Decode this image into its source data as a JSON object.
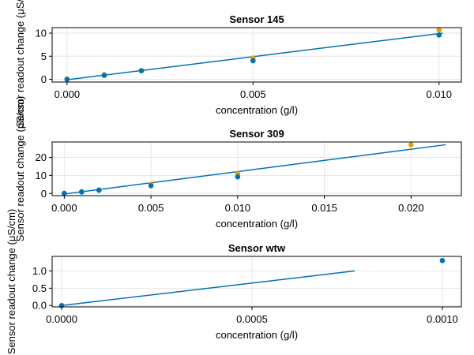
{
  "colors": {
    "fit": "#0072b2",
    "blue": "#0072b2",
    "orange": "#e69f00",
    "grid": "#e6e6e6",
    "frame": "#000000"
  },
  "chart_data": [
    {
      "type": "scatter",
      "title": "Sensor 145",
      "xlabel": "concentration (g/l)",
      "ylabel": "Sensor readout change (μS/cm)",
      "xlim": [
        -0.0004,
        0.0106
      ],
      "ylim": [
        -0.6,
        11.2
      ],
      "xticks": [
        0.0,
        0.005,
        0.01
      ],
      "xtick_labels": [
        "0.000",
        "0.005",
        "0.010"
      ],
      "yticks": [
        0,
        5,
        10
      ],
      "ytick_labels": [
        "0",
        "5",
        "10"
      ],
      "grid": true,
      "series": [
        {
          "color": "orange",
          "x": [
            0.0,
            0.001,
            0.002,
            0.005,
            0.01
          ],
          "y": [
            0.05,
            1.0,
            1.9,
            4.6,
            10.7
          ]
        },
        {
          "color": "blue",
          "x": [
            0.0,
            0.001,
            0.002,
            0.005,
            0.01
          ],
          "y": [
            0.0,
            0.85,
            1.85,
            4.0,
            9.6
          ]
        }
      ],
      "fit_line": {
        "x": [
          0.0,
          0.0101
        ],
        "y": [
          -0.1,
          10.0
        ]
      }
    },
    {
      "type": "scatter",
      "title": "Sensor 309",
      "xlabel": "concentration (g/l)",
      "ylabel": "Sensor readout change (μS/cm)",
      "xlim": [
        -0.0007,
        0.0229
      ],
      "ylim": [
        -1.2,
        28.5
      ],
      "xticks": [
        0.0,
        0.005,
        0.01,
        0.015,
        0.02
      ],
      "xtick_labels": [
        "0.000",
        "0.005",
        "0.010",
        "0.015",
        "0.020"
      ],
      "yticks": [
        0,
        10,
        20
      ],
      "ytick_labels": [
        "0",
        "10",
        "20"
      ],
      "grid": true,
      "series": [
        {
          "color": "orange",
          "x": [
            0.0,
            0.001,
            0.002,
            0.005,
            0.01,
            0.02
          ],
          "y": [
            0.2,
            1.1,
            2.0,
            5.0,
            11.0,
            27.0
          ]
        },
        {
          "color": "blue",
          "x": [
            0.0,
            0.001,
            0.002,
            0.005,
            0.01
          ],
          "y": [
            0.0,
            0.8,
            1.8,
            4.3,
            9.2
          ]
        }
      ],
      "fit_line": {
        "x": [
          0.0,
          0.022
        ],
        "y": [
          -0.3,
          27.0
        ]
      }
    },
    {
      "type": "scatter",
      "title": "Sensor wtw",
      "xlabel": "concentration (g/l)",
      "ylabel": "Sensor readout change (μS/cm)",
      "xlim": [
        -2.5e-05,
        0.00105
      ],
      "ylim": [
        -0.04,
        1.42
      ],
      "xticks": [
        0.0,
        0.0005,
        0.001
      ],
      "xtick_labels": [
        "0.0000",
        "0.0005",
        "0.0010"
      ],
      "yticks": [
        0.0,
        0.5,
        1.0
      ],
      "ytick_labels": [
        "0.0",
        "0.5",
        "1.0"
      ],
      "grid": true,
      "series": [
        {
          "color": "blue",
          "x": [
            0.0,
            0.001
          ],
          "y": [
            0.0,
            1.3
          ]
        }
      ],
      "fit_line": {
        "x": [
          0.0,
          0.00077
        ],
        "y": [
          0.0,
          1.0
        ]
      }
    }
  ]
}
